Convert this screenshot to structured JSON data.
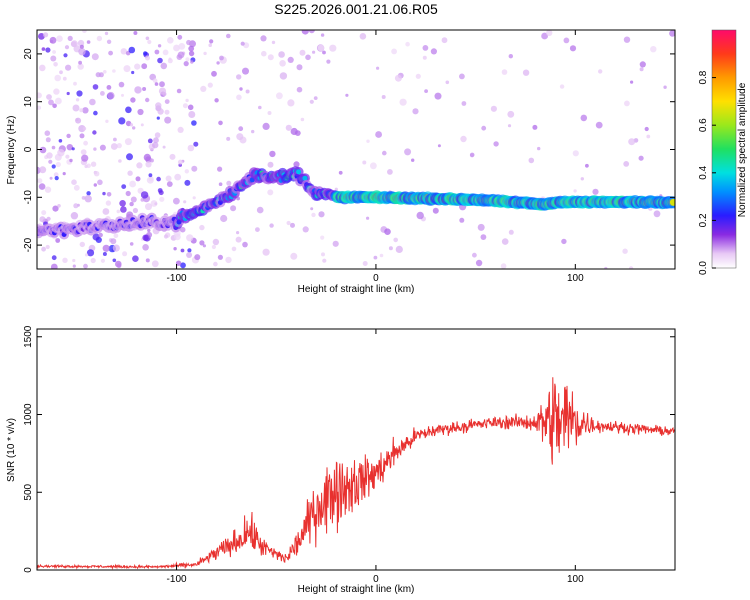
{
  "title": "S225.2026.001.21.06.R05",
  "chart_data": [
    {
      "type": "heatmap",
      "xlabel": "Height of straight line (km)",
      "ylabel": "Frequency (Hz)",
      "xlim": [
        -170,
        150
      ],
      "ylim": [
        -25,
        25
      ],
      "x_ticks": [
        "-100",
        "0",
        "100"
      ],
      "y_ticks": [
        "-20",
        "-10",
        "0",
        "10",
        "20"
      ],
      "colorbar": {
        "label": "Normalized spectral amplitude",
        "range": [
          0,
          1
        ],
        "ticks": [
          "0.0",
          "0.2",
          "0.4",
          "0.6",
          "0.8"
        ]
      },
      "ridge": [
        {
          "x": -170,
          "freq": -17
        },
        {
          "x": -100,
          "freq": -15
        },
        {
          "x": -90,
          "freq": -13
        },
        {
          "x": -75,
          "freq": -10
        },
        {
          "x": -60,
          "freq": -5
        },
        {
          "x": -50,
          "freq": -6
        },
        {
          "x": -40,
          "freq": -5
        },
        {
          "x": -30,
          "freq": -9
        },
        {
          "x": -20,
          "freq": -10
        },
        {
          "x": 0,
          "freq": -10
        },
        {
          "x": 50,
          "freq": -10.5
        },
        {
          "x": 85,
          "freq": -11.5
        },
        {
          "x": 90,
          "freq": -11
        },
        {
          "x": 100,
          "freq": -11
        },
        {
          "x": 150,
          "freq": -11
        }
      ]
    },
    {
      "type": "line",
      "xlabel": "Height of straight line (km)",
      "ylabel": "SNR (10 * v/v)",
      "xlim": [
        -170,
        150
      ],
      "ylim": [
        0,
        1550
      ],
      "x_ticks": [
        "-100",
        "0",
        "100"
      ],
      "y_ticks": [
        "0",
        "500",
        "1000",
        "1500"
      ],
      "series_color": "#e8312f",
      "envelope": [
        {
          "x": -170,
          "mean": 25,
          "spread": 12
        },
        {
          "x": -110,
          "mean": 20,
          "spread": 12
        },
        {
          "x": -90,
          "mean": 35,
          "spread": 25
        },
        {
          "x": -80,
          "mean": 110,
          "spread": 80
        },
        {
          "x": -70,
          "mean": 180,
          "spread": 120
        },
        {
          "x": -64,
          "mean": 250,
          "spread": 180
        },
        {
          "x": -55,
          "mean": 130,
          "spread": 90
        },
        {
          "x": -45,
          "mean": 70,
          "spread": 50
        },
        {
          "x": -38,
          "mean": 200,
          "spread": 150
        },
        {
          "x": -30,
          "mean": 400,
          "spread": 280
        },
        {
          "x": -20,
          "mean": 520,
          "spread": 350
        },
        {
          "x": -10,
          "mean": 560,
          "spread": 250
        },
        {
          "x": 0,
          "mean": 620,
          "spread": 180
        },
        {
          "x": 10,
          "mean": 760,
          "spread": 120
        },
        {
          "x": 20,
          "mean": 860,
          "spread": 80
        },
        {
          "x": 30,
          "mean": 900,
          "spread": 60
        },
        {
          "x": 60,
          "mean": 950,
          "spread": 55
        },
        {
          "x": 80,
          "mean": 950,
          "spread": 80
        },
        {
          "x": 88,
          "mean": 960,
          "spread": 420
        },
        {
          "x": 95,
          "mean": 960,
          "spread": 550
        },
        {
          "x": 102,
          "mean": 950,
          "spread": 200
        },
        {
          "x": 110,
          "mean": 930,
          "spread": 60
        },
        {
          "x": 150,
          "mean": 890,
          "spread": 40
        }
      ]
    }
  ]
}
